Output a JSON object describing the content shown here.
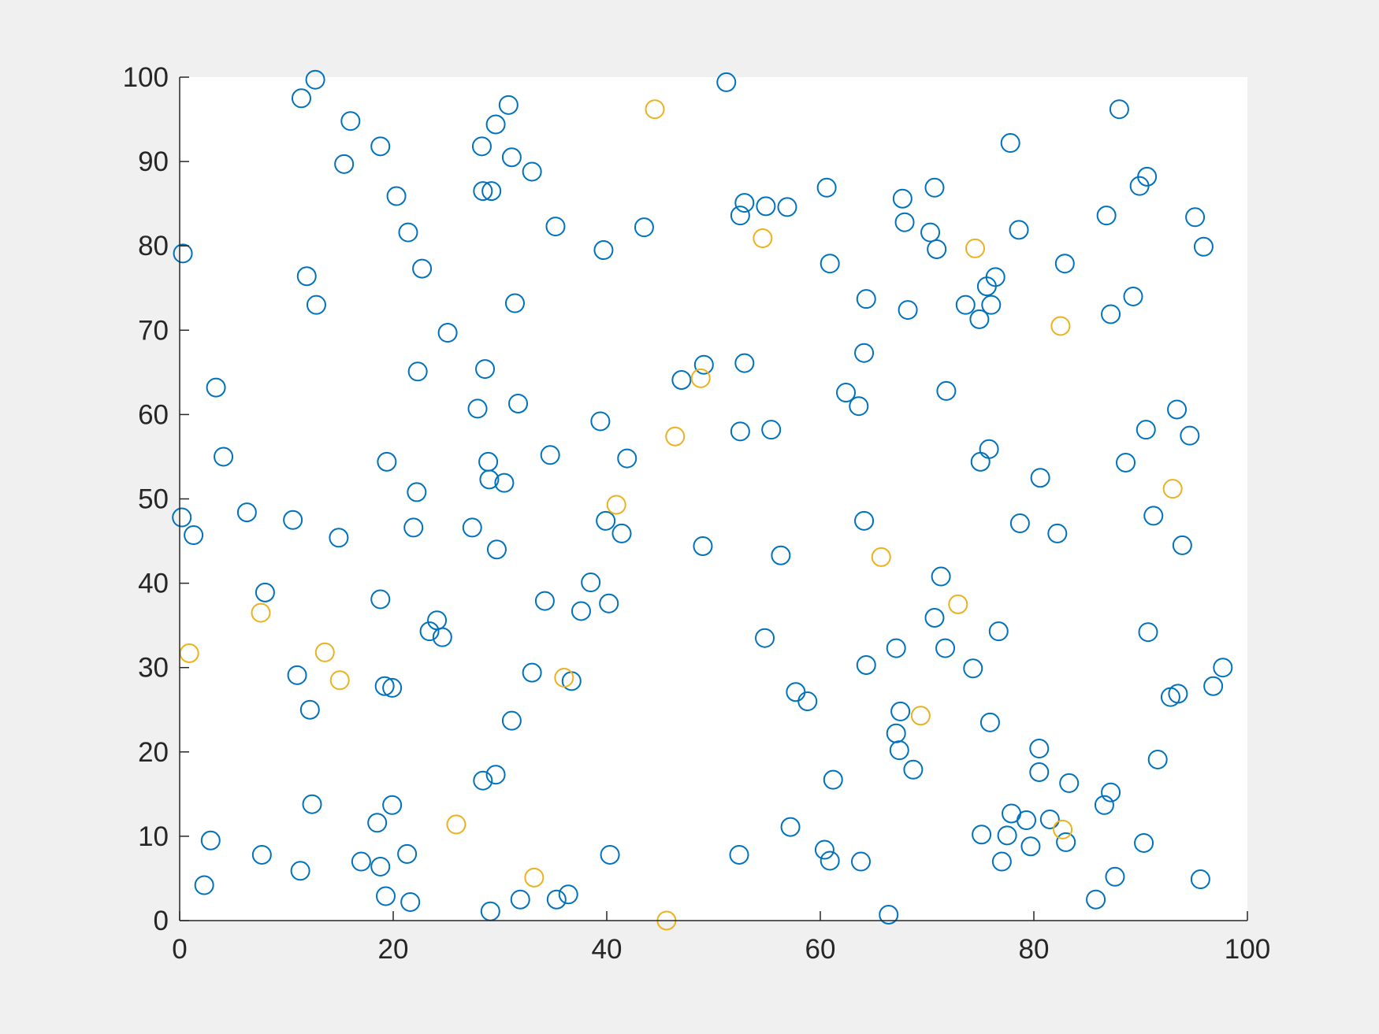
{
  "chart_data": {
    "type": "scatter",
    "xlim": [
      0,
      100
    ],
    "ylim": [
      0,
      100
    ],
    "xticks": [
      0,
      20,
      40,
      60,
      80,
      100
    ],
    "yticks": [
      0,
      10,
      20,
      30,
      40,
      50,
      60,
      70,
      80,
      90,
      100
    ],
    "series": [
      {
        "color": "#0072bd",
        "x": [
          12.7,
          51.2,
          11.4,
          30.8,
          88.0,
          16.0,
          29.6,
          18.8,
          28.3,
          77.8,
          31.1,
          15.4,
          33.0,
          90.6,
          89.9,
          28.4,
          29.2,
          60.6,
          70.7,
          20.3,
          67.7,
          52.9,
          54.9,
          56.9,
          52.5,
          86.8,
          95.1,
          67.9,
          35.2,
          43.5,
          21.4,
          70.3,
          78.6,
          95.9,
          70.9,
          0.3,
          39.7,
          60.9,
          82.9,
          22.7,
          11.9,
          76.4,
          75.6,
          64.3,
          89.3,
          12.8,
          31.4,
          73.6,
          76.0,
          68.2,
          87.2,
          74.9,
          25.1,
          64.1,
          52.9,
          49.1,
          28.6,
          22.3,
          47.0,
          3.4,
          71.8,
          62.4,
          31.7,
          63.6,
          27.9,
          93.4,
          39.4,
          55.4,
          52.5,
          90.5,
          94.6,
          75.8,
          4.1,
          34.7,
          41.9,
          19.4,
          28.9,
          75.0,
          88.6,
          29.0,
          30.4,
          80.6,
          22.2,
          6.3,
          0.2,
          91.2,
          10.6,
          39.9,
          64.1,
          78.7,
          27.4,
          21.9,
          1.3,
          14.9,
          41.4,
          82.2,
          49.0,
          93.9,
          29.7,
          56.3,
          38.5,
          71.3,
          8.0,
          18.8,
          34.2,
          40.2,
          37.6,
          70.7,
          24.1,
          23.4,
          24.6,
          76.7,
          90.7,
          54.8,
          67.1,
          71.7,
          64.3,
          74.3,
          97.7,
          33.0,
          11.0,
          36.7,
          19.2,
          19.9,
          96.8,
          57.7,
          93.5,
          92.8,
          58.8,
          12.2,
          67.5,
          31.1,
          75.9,
          67.1,
          67.4,
          80.5,
          91.6,
          68.7,
          29.6,
          80.5,
          28.4,
          61.2,
          83.3,
          87.2,
          12.4,
          19.9,
          86.6,
          77.9,
          79.3,
          81.5,
          18.5,
          57.2,
          75.1,
          77.5,
          2.9,
          83.0,
          90.3,
          79.7,
          60.4,
          7.7,
          21.3,
          40.3,
          52.4,
          60.9,
          17.0,
          63.8,
          77.0,
          18.8,
          11.3,
          87.6,
          95.6,
          2.3,
          19.3,
          36.4,
          31.9,
          35.3,
          85.8,
          21.6,
          29.1,
          66.4
        ],
        "y": [
          99.7,
          99.4,
          97.5,
          96.7,
          96.2,
          94.8,
          94.4,
          91.8,
          91.8,
          92.2,
          90.5,
          89.7,
          88.8,
          88.2,
          87.1,
          86.5,
          86.5,
          86.9,
          86.9,
          85.9,
          85.6,
          85.1,
          84.7,
          84.6,
          83.6,
          83.6,
          83.4,
          82.8,
          82.3,
          82.2,
          81.6,
          81.6,
          81.9,
          79.9,
          79.6,
          79.1,
          79.5,
          77.9,
          77.9,
          77.3,
          76.4,
          76.3,
          75.2,
          73.7,
          74.0,
          73.0,
          73.2,
          73.0,
          73.0,
          72.4,
          71.9,
          71.3,
          69.7,
          67.3,
          66.1,
          65.9,
          65.4,
          65.1,
          64.1,
          63.2,
          62.8,
          62.6,
          61.3,
          61.0,
          60.7,
          60.6,
          59.2,
          58.2,
          58.0,
          58.2,
          57.5,
          55.9,
          55.0,
          55.2,
          54.8,
          54.4,
          54.4,
          54.4,
          54.3,
          52.3,
          51.9,
          52.5,
          50.8,
          48.4,
          47.8,
          48.0,
          47.5,
          47.4,
          47.4,
          47.1,
          46.6,
          46.6,
          45.7,
          45.4,
          45.9,
          45.9,
          44.4,
          44.5,
          44.0,
          43.3,
          40.1,
          40.8,
          38.9,
          38.1,
          37.9,
          37.6,
          36.7,
          35.9,
          35.6,
          34.3,
          33.6,
          34.3,
          34.2,
          33.5,
          32.3,
          32.3,
          30.3,
          29.9,
          30.0,
          29.4,
          29.1,
          28.4,
          27.8,
          27.6,
          27.8,
          27.1,
          26.9,
          26.5,
          26.0,
          25.0,
          24.8,
          23.7,
          23.5,
          22.2,
          20.2,
          20.4,
          19.1,
          17.9,
          17.3,
          17.6,
          16.6,
          16.7,
          16.3,
          15.2,
          13.8,
          13.7,
          13.7,
          12.7,
          11.9,
          12.0,
          11.6,
          11.1,
          10.2,
          10.1,
          9.5,
          9.3,
          9.2,
          8.8,
          8.4,
          7.8,
          7.9,
          7.8,
          7.8,
          7.1,
          7.0,
          7.0,
          7.0,
          6.4,
          5.9,
          5.2,
          4.9,
          4.2,
          2.9,
          3.1,
          2.5,
          2.5,
          2.5,
          2.2,
          1.1,
          0.7
        ]
      },
      {
        "color": "#edb120",
        "x": [
          44.5,
          54.6,
          74.5,
          82.5,
          48.8,
          46.4,
          93.0,
          40.9,
          65.7,
          7.6,
          72.9,
          0.9,
          13.6,
          15.0,
          36.0,
          69.4,
          25.9,
          82.7,
          33.2,
          45.6
        ],
        "y": [
          96.2,
          80.9,
          79.7,
          70.5,
          64.3,
          57.4,
          51.2,
          49.3,
          43.1,
          36.5,
          37.5,
          31.7,
          31.8,
          28.5,
          28.8,
          24.3,
          11.4,
          10.8,
          5.1,
          0.0
        ]
      }
    ]
  }
}
